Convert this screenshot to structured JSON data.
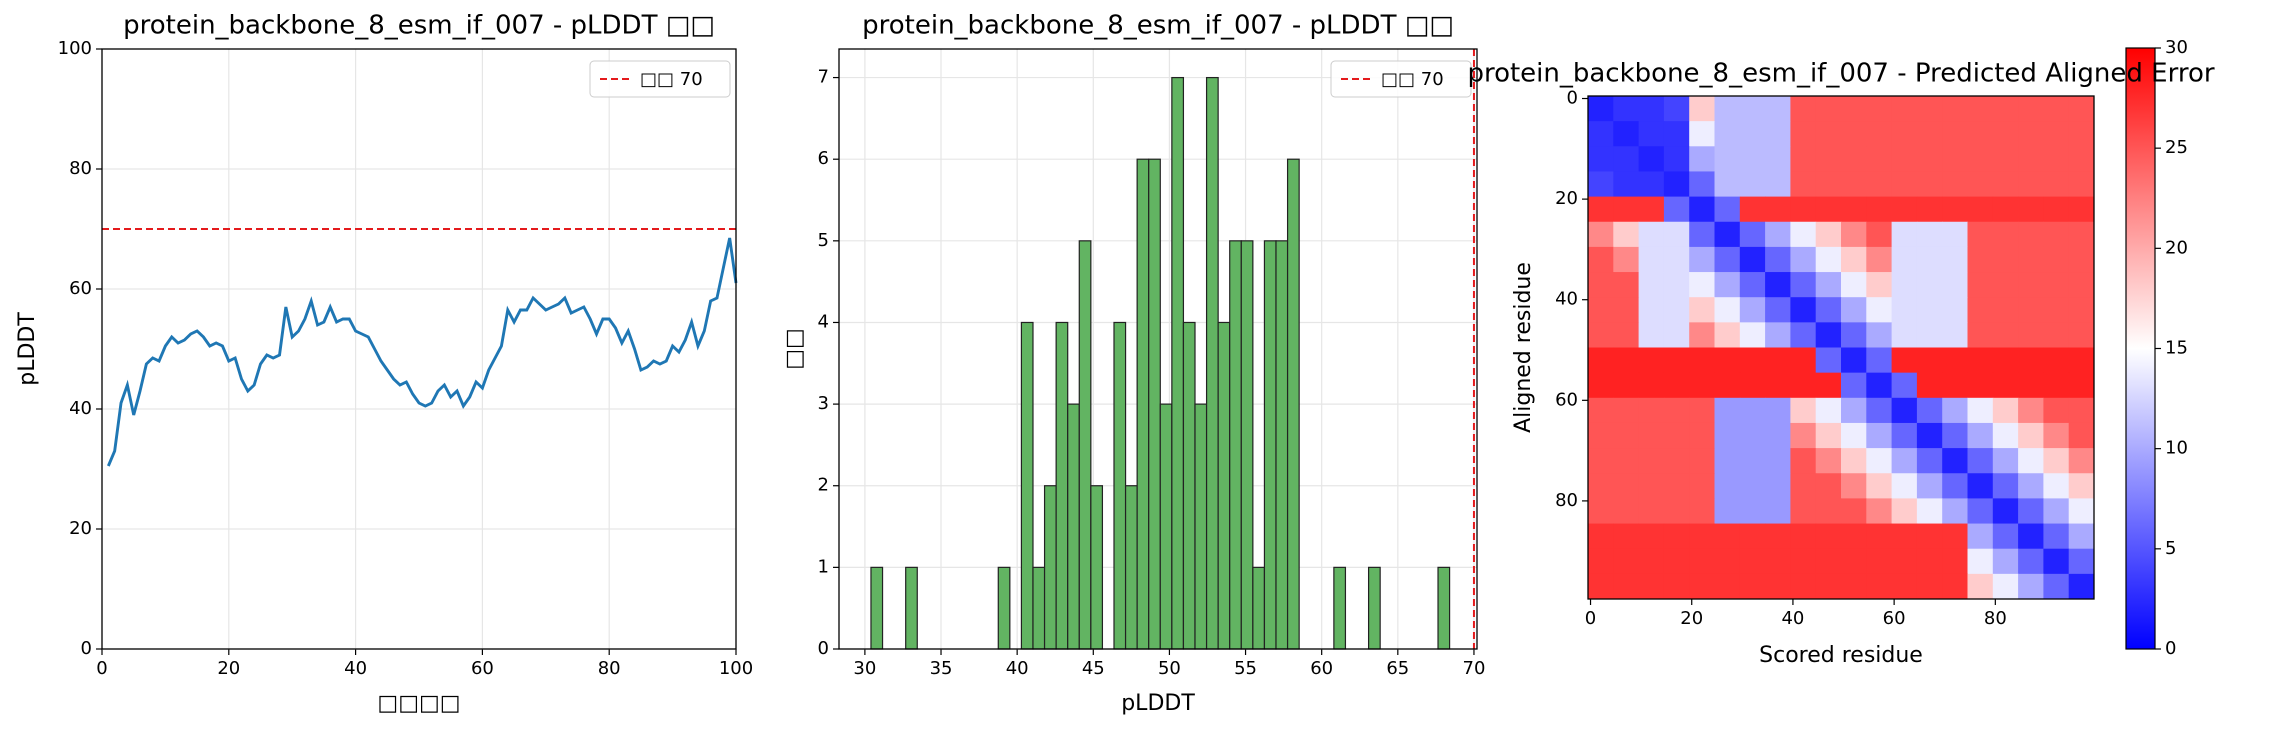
{
  "chart_data": [
    {
      "type": "line",
      "title": "protein_backbone_8_esm_if_007 - pLDDT □□",
      "xlabel": "□□□□",
      "ylabel": "pLDDT",
      "x": [
        1,
        2,
        3,
        4,
        5,
        6,
        7,
        8,
        9,
        10,
        11,
        12,
        13,
        14,
        15,
        16,
        17,
        18,
        19,
        20,
        21,
        22,
        23,
        24,
        25,
        26,
        27,
        28,
        29,
        30,
        31,
        32,
        33,
        34,
        35,
        36,
        37,
        38,
        39,
        40,
        41,
        42,
        43,
        44,
        45,
        46,
        47,
        48,
        49,
        50,
        51,
        52,
        53,
        54,
        55,
        56,
        57,
        58,
        59,
        60,
        61,
        62,
        63,
        64,
        65,
        66,
        67,
        68,
        69,
        70,
        71,
        72,
        73,
        74,
        75,
        76,
        77,
        78,
        79,
        80,
        81,
        82,
        83,
        84,
        85,
        86,
        87,
        88,
        89,
        90,
        91,
        92,
        93,
        94,
        95,
        96,
        97,
        98,
        99,
        100
      ],
      "values": [
        30.5,
        33,
        41,
        44,
        39,
        43,
        47.5,
        48.5,
        48,
        50.5,
        52,
        51,
        51.5,
        52.5,
        53,
        52,
        50.5,
        51,
        50.5,
        48,
        48.5,
        45,
        43,
        44,
        47.5,
        49,
        48.5,
        49,
        57,
        52,
        53,
        55,
        58,
        54,
        54.5,
        57,
        54.5,
        55,
        55,
        53,
        52.5,
        52,
        50,
        48,
        46.5,
        45,
        44,
        44.5,
        42.5,
        41,
        40.5,
        41,
        43,
        44,
        42,
        43,
        40.5,
        42,
        44.5,
        43.5,
        46.5,
        48.5,
        50.5,
        56.5,
        54.5,
        56.5,
        56.5,
        58.5,
        57.5,
        56.5,
        57,
        57.5,
        58.5,
        56,
        56.5,
        57,
        55,
        52.5,
        55,
        55,
        53.5,
        51,
        53,
        50,
        46.5,
        47,
        48,
        47.5,
        48,
        50.5,
        49.5,
        51.5,
        54.5,
        50.5,
        53,
        58,
        58.5,
        63.5,
        68.5,
        61
      ],
      "color": "#1f77b4",
      "threshold": {
        "value": 70,
        "label": "□□ 70",
        "color": "#e41a1c"
      },
      "xlim": [
        0,
        100
      ],
      "xticks": [
        0,
        20,
        40,
        60,
        80,
        100
      ],
      "ylim": [
        0,
        100
      ],
      "yticks": [
        0,
        20,
        40,
        60,
        80,
        100
      ],
      "grid": true,
      "legend": "upper right"
    },
    {
      "type": "histogram",
      "title": "protein_backbone_8_esm_if_007 - pLDDT □□",
      "xlabel": "pLDDT",
      "ylabel": "□□",
      "bins": [
        30.4,
        31.16,
        31.92,
        32.68,
        33.44,
        34.2,
        34.96,
        35.72,
        36.48,
        37.24,
        38.0,
        38.76,
        39.52,
        40.28,
        41.04,
        41.8,
        42.56,
        43.32,
        44.08,
        44.84,
        45.6,
        46.36,
        47.12,
        47.88,
        48.64,
        49.4,
        50.16,
        50.92,
        51.68,
        52.44,
        53.2,
        53.96,
        54.72,
        55.48,
        56.24,
        57.0,
        57.76,
        58.52,
        59.28,
        60.04,
        60.8,
        61.56,
        62.32,
        63.08,
        63.84,
        64.6,
        65.36,
        66.12,
        66.88,
        67.64,
        68.4
      ],
      "values": [
        1,
        0,
        0,
        1,
        0,
        0,
        0,
        0,
        0,
        0,
        0,
        1,
        0,
        4,
        1,
        2,
        4,
        3,
        5,
        2,
        0,
        4,
        2,
        6,
        6,
        3,
        7,
        4,
        3,
        7,
        4,
        5,
        5,
        1,
        5,
        5,
        6,
        0,
        0,
        0,
        1,
        0,
        0,
        1,
        0,
        0,
        0,
        0,
        0,
        1
      ],
      "color": "#62b462",
      "threshold": {
        "value": 70,
        "label": "□□ 70",
        "color": "#e41a1c"
      },
      "xlim": [
        28.3,
        70.2
      ],
      "xticks": [
        30,
        35,
        40,
        45,
        50,
        55,
        60,
        65,
        70
      ],
      "ylim": [
        0,
        7.35
      ],
      "yticks": [
        0,
        1,
        2,
        3,
        4,
        5,
        6,
        7
      ],
      "grid": true,
      "legend": "upper right"
    },
    {
      "type": "heatmap",
      "title": "protein_backbone_8_esm_if_007 - Predicted Aligned Error",
      "xlabel": "Scored residue",
      "ylabel": "Aligned residue",
      "colormap": "bwr",
      "zlim": [
        0,
        30
      ],
      "colorbar_ticks": [
        0,
        5,
        10,
        15,
        20,
        25,
        30
      ],
      "xlim": [
        -0.5,
        99.5
      ],
      "xticks": [
        0,
        20,
        40,
        60,
        80
      ],
      "ylim": [
        99.5,
        -0.5
      ],
      "yticks": [
        0,
        20,
        40,
        60,
        80
      ],
      "z": [
        [
          2,
          3,
          3,
          4,
          18,
          11,
          11,
          11,
          25,
          25,
          25,
          25,
          25,
          25,
          25,
          25,
          25,
          25,
          25,
          25
        ],
        [
          3,
          2,
          3,
          3,
          14,
          11,
          11,
          11,
          25,
          25,
          25,
          25,
          25,
          25,
          25,
          25,
          25,
          25,
          25,
          25
        ],
        [
          3,
          3,
          2,
          3,
          10,
          11,
          11,
          11,
          25,
          25,
          25,
          25,
          25,
          25,
          25,
          25,
          25,
          25,
          25,
          25
        ],
        [
          4,
          3,
          3,
          2,
          6,
          11,
          11,
          11,
          25,
          25,
          25,
          25,
          25,
          25,
          25,
          25,
          25,
          25,
          25,
          25
        ],
        [
          27,
          27,
          27,
          6,
          2,
          6,
          27,
          27,
          27,
          27,
          27,
          27,
          27,
          27,
          27,
          27,
          27,
          27,
          27,
          27
        ],
        [
          22,
          18,
          13,
          13,
          6,
          2,
          6,
          10,
          14,
          18,
          22,
          25,
          13,
          13,
          13,
          25,
          25,
          25,
          25,
          25
        ],
        [
          25,
          22,
          13,
          13,
          10,
          6,
          2,
          6,
          10,
          14,
          18,
          22,
          13,
          13,
          13,
          25,
          25,
          25,
          25,
          25
        ],
        [
          25,
          25,
          13,
          13,
          14,
          10,
          6,
          2,
          6,
          10,
          14,
          18,
          13,
          13,
          13,
          25,
          25,
          25,
          25,
          25
        ],
        [
          25,
          25,
          13,
          13,
          18,
          14,
          10,
          6,
          2,
          6,
          10,
          14,
          13,
          13,
          13,
          25,
          25,
          25,
          25,
          25
        ],
        [
          25,
          25,
          13,
          13,
          22,
          18,
          14,
          10,
          6,
          2,
          6,
          10,
          13,
          13,
          13,
          25,
          25,
          25,
          25,
          25
        ],
        [
          28,
          28,
          28,
          28,
          28,
          28,
          28,
          28,
          28,
          6,
          2,
          6,
          28,
          28,
          28,
          28,
          28,
          28,
          28,
          28
        ],
        [
          28,
          28,
          28,
          28,
          28,
          28,
          28,
          28,
          28,
          28,
          6,
          2,
          6,
          28,
          28,
          28,
          28,
          28,
          28,
          28
        ],
        [
          25,
          25,
          25,
          25,
          25,
          9,
          9,
          9,
          18,
          14,
          10,
          6,
          2,
          6,
          10,
          14,
          18,
          22,
          25,
          25
        ],
        [
          25,
          25,
          25,
          25,
          25,
          9,
          9,
          9,
          22,
          18,
          14,
          10,
          6,
          2,
          6,
          10,
          14,
          18,
          22,
          25
        ],
        [
          25,
          25,
          25,
          25,
          25,
          9,
          9,
          9,
          25,
          22,
          18,
          14,
          10,
          6,
          2,
          6,
          10,
          14,
          18,
          22
        ],
        [
          25,
          25,
          25,
          25,
          25,
          9,
          9,
          9,
          25,
          25,
          22,
          18,
          14,
          10,
          6,
          2,
          6,
          10,
          14,
          18
        ],
        [
          25,
          25,
          25,
          25,
          25,
          9,
          9,
          9,
          25,
          25,
          25,
          22,
          18,
          14,
          10,
          6,
          2,
          6,
          10,
          14
        ],
        [
          27,
          27,
          27,
          27,
          27,
          27,
          27,
          27,
          27,
          27,
          27,
          27,
          27,
          27,
          27,
          10,
          6,
          2,
          6,
          10
        ],
        [
          27,
          27,
          27,
          27,
          27,
          27,
          27,
          27,
          27,
          27,
          27,
          27,
          27,
          27,
          27,
          14,
          10,
          6,
          2,
          6
        ],
        [
          27,
          27,
          27,
          27,
          27,
          27,
          27,
          27,
          27,
          27,
          27,
          27,
          27,
          27,
          27,
          18,
          14,
          10,
          6,
          2
        ]
      ]
    }
  ]
}
